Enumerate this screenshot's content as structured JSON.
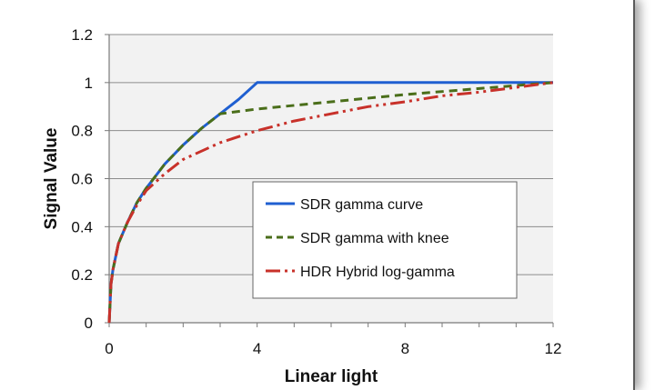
{
  "chart_data": {
    "type": "line",
    "title": "",
    "xlabel": "Linear light",
    "ylabel": "Signal Value",
    "xlim": [
      0,
      12
    ],
    "ylim": [
      0,
      1.2
    ],
    "xticks": [
      0,
      4,
      8,
      12
    ],
    "xtick_labels": [
      "0",
      "4",
      "8",
      "12"
    ],
    "yticks": [
      0,
      0.2,
      0.4,
      0.6,
      0.8,
      1,
      1.2
    ],
    "ytick_labels": [
      "0",
      "0.2",
      "0.4",
      "0.6",
      "0.8",
      "1",
      "1.2"
    ],
    "grid": true,
    "legend_position": "center-right",
    "plot_background": "#f2f2f2",
    "series": [
      {
        "name": "SDR gamma curve",
        "color": "#1f5fd1",
        "style": "solid",
        "x": [
          0,
          0.05,
          0.1,
          0.25,
          0.5,
          0.75,
          1,
          1.5,
          2,
          2.5,
          3,
          3.5,
          4,
          12
        ],
        "y": [
          0,
          0.16,
          0.22,
          0.33,
          0.42,
          0.5,
          0.56,
          0.66,
          0.74,
          0.81,
          0.87,
          0.93,
          1.0,
          1.0
        ]
      },
      {
        "name": "SDR gamma with knee",
        "color": "#4a6e1a",
        "style": "dashed",
        "x": [
          0,
          0.05,
          0.1,
          0.25,
          0.5,
          0.75,
          1,
          1.5,
          2,
          2.5,
          3,
          4,
          6,
          8,
          10,
          12
        ],
        "y": [
          0,
          0.16,
          0.22,
          0.33,
          0.42,
          0.5,
          0.56,
          0.66,
          0.74,
          0.81,
          0.87,
          0.89,
          0.92,
          0.95,
          0.975,
          1.0
        ]
      },
      {
        "name": "HDR Hybrid log-gamma",
        "color": "#c8312a",
        "style": "dash-dot-dot",
        "x": [
          0,
          0.05,
          0.1,
          0.25,
          0.5,
          0.75,
          1,
          1.5,
          2,
          3,
          4,
          5,
          6,
          7,
          8,
          9,
          10,
          11,
          12
        ],
        "y": [
          0,
          0.16,
          0.22,
          0.33,
          0.42,
          0.49,
          0.55,
          0.62,
          0.68,
          0.75,
          0.8,
          0.84,
          0.87,
          0.9,
          0.92,
          0.945,
          0.96,
          0.98,
          1.0
        ]
      }
    ]
  }
}
